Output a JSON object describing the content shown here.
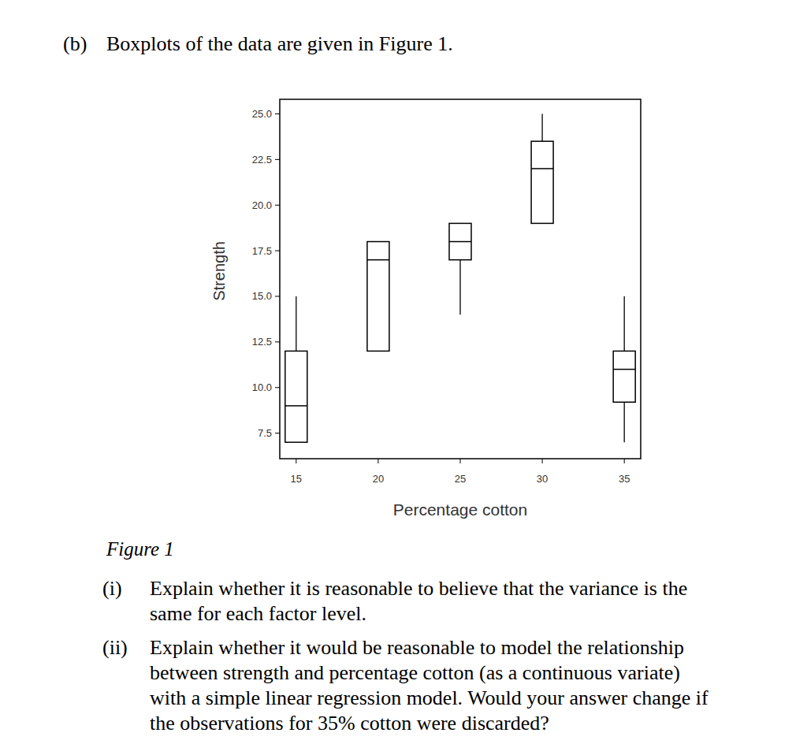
{
  "heading": {
    "label": "(b)",
    "text": "Boxplots of the data are given in Figure 1."
  },
  "figure_caption": "Figure 1",
  "questions": [
    {
      "label": "(i)",
      "lines": [
        "Explain whether it is reasonable to believe that the variance is the",
        "same for each factor level."
      ]
    },
    {
      "label": "(ii)",
      "lines": [
        "Explain whether it would be reasonable to model the relationship",
        "between strength and percentage cotton (as a continuous variate)",
        "with a simple linear regression model. Would your answer change if",
        "the observations for 35% cotton were discarded?"
      ]
    }
  ],
  "chart_data": {
    "type": "boxplot",
    "x_label": "Percentage cotton",
    "y_label": "Strength",
    "x": [
      15,
      20,
      25,
      30,
      35
    ],
    "whisker_low": [
      7,
      12,
      14,
      19,
      7
    ],
    "q1": [
      7,
      12,
      17,
      19,
      9.2
    ],
    "median": [
      9,
      17,
      18,
      22,
      11
    ],
    "q3": [
      12,
      18,
      19,
      23.5,
      12
    ],
    "whisker_high": [
      15,
      18,
      19,
      25,
      15
    ],
    "color": "#000000",
    "xlim": [
      14,
      36
    ],
    "xticks": [
      15,
      20,
      25,
      30,
      35
    ],
    "ylim": [
      6.1,
      25.8
    ],
    "yticks": [
      7.5,
      {
        "value": 10,
        "label": "10.0"
      },
      12.5,
      {
        "value": 15,
        "label": "15.0"
      },
      17.5,
      {
        "value": 20,
        "label": "20.0"
      },
      22.5,
      {
        "value": 25,
        "label": "25.0"
      }
    ],
    "grid": false
  }
}
